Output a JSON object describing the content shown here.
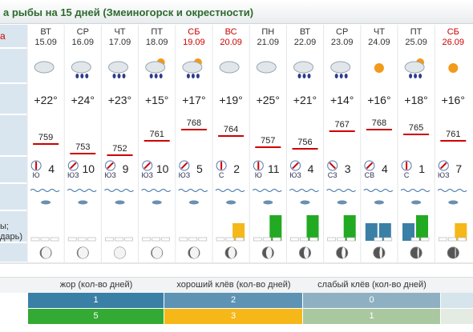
{
  "title": "а рыбы на 15 дней (Змеиногорск и окрестности)",
  "left_labels": [
    "а",
    "ы;",
    "дарь)"
  ],
  "days": [
    {
      "weekday": "ВТ",
      "date": "15.09",
      "temp": "+22°",
      "pressure": 759,
      "wind_dir": "Ю",
      "wind_speed": 4,
      "bars": []
    },
    {
      "weekday": "СР",
      "date": "16.09",
      "temp": "+24°",
      "pressure": 753,
      "wind_dir": "ЮЗ",
      "wind_speed": 10,
      "bars": []
    },
    {
      "weekday": "ЧТ",
      "date": "17.09",
      "temp": "+23°",
      "pressure": 752,
      "wind_dir": "ЮЗ",
      "wind_speed": 9,
      "bars": []
    },
    {
      "weekday": "ПТ",
      "date": "18.09",
      "temp": "+15°",
      "pressure": 761,
      "wind_dir": "ЮЗ",
      "wind_speed": 10,
      "bars": []
    },
    {
      "weekday": "СБ",
      "date": "19.09",
      "temp": "+17°",
      "pressure": 768,
      "wind_dir": "ЮЗ",
      "wind_speed": 5,
      "color": "#cc0000",
      "bars": []
    },
    {
      "weekday": "ВС",
      "date": "20.09",
      "temp": "+19°",
      "pressure": 764,
      "wind_dir": "С",
      "wind_speed": 2,
      "color": "#cc0000",
      "bars": [
        "#f5b818"
      ]
    },
    {
      "weekday": "ПН",
      "date": "21.09",
      "temp": "+25°",
      "pressure": 757,
      "wind_dir": "Ю",
      "wind_speed": 11,
      "bars": [
        "#22aa22"
      ]
    },
    {
      "weekday": "ВТ",
      "date": "22.09",
      "temp": "+21°",
      "pressure": 756,
      "wind_dir": "ЮЗ",
      "wind_speed": 4,
      "bars": [
        "#22aa22"
      ]
    },
    {
      "weekday": "СР",
      "date": "23.09",
      "temp": "+14°",
      "pressure": 767,
      "wind_dir": "СЗ",
      "wind_speed": 3,
      "bars": [
        "#22aa22"
      ]
    },
    {
      "weekday": "ЧТ",
      "date": "24.09",
      "temp": "+16°",
      "pressure": 768,
      "wind_dir": "СВ",
      "wind_speed": 4,
      "bars": [
        "#3a7fa6",
        "#3a7fa6"
      ]
    },
    {
      "weekday": "ПТ",
      "date": "25.09",
      "temp": "+18°",
      "pressure": 765,
      "wind_dir": "С",
      "wind_speed": 1,
      "bars": [
        "#3a7fa6",
        "#22aa22"
      ]
    },
    {
      "weekday": "СБ",
      "date": "26.09",
      "temp": "+16°",
      "pressure": 761,
      "wind_dir": "ЮЗ",
      "wind_speed": 7,
      "color": "#cc0000",
      "bars": [
        "#f5b818"
      ]
    }
  ],
  "summary": {
    "headers": [
      "жор (кол-во дней)",
      "хороший клёв (кол-во дней)",
      "слабый клёв (кол-во дней)"
    ],
    "rows": [
      {
        "colors": [
          "#3a7fa6",
          "#5f93b3",
          "#8fb0c2"
        ],
        "values": [
          1,
          2,
          0
        ]
      },
      {
        "colors": [
          "#33aa33",
          "#f5b818",
          "#a9c8a0"
        ],
        "values": [
          5,
          3,
          1
        ]
      }
    ]
  }
}
